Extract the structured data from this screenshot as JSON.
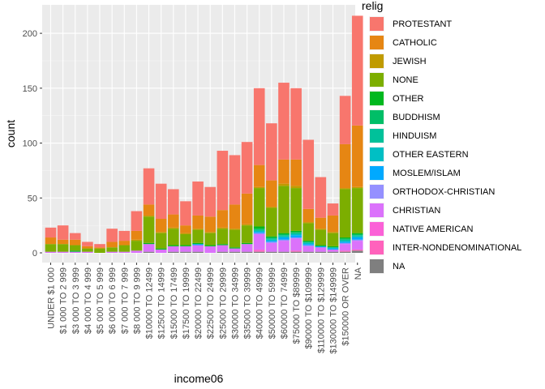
{
  "chart_data": {
    "type": "bar",
    "stacked": true,
    "xlabel": "income06",
    "ylabel": "count",
    "ylim": [
      0,
      220
    ],
    "yticks": [
      0,
      50,
      100,
      150,
      200
    ],
    "grid": true,
    "legend": {
      "title": "relig",
      "placement": "right"
    },
    "categories": [
      "UNDER $1 000",
      "$1 000 TO 2 999",
      "$3 000 TO 3 999",
      "$4 000 TO 4 999",
      "$5 000 TO 5 999",
      "$6 000 TO 6 999",
      "$7 000 TO 7 999",
      "$8 000 TO 9 999",
      "$10000 TO 12499",
      "$12500 TO 14999",
      "$15000 TO 17499",
      "$17500 TO 19999",
      "$20000 TO 22499",
      "$22500 TO 24999",
      "$25000 TO 29999",
      "$30000 TO 34999",
      "$35000 TO 39999",
      "$40000 TO 49999",
      "$50000 TO 59999",
      "$60000 TO 74999",
      "$75000 TO $89999",
      "$90000 TO $109999",
      "$110000 TO $129999",
      "$130000 TO $149999",
      "$150000 OR OVER",
      "NA"
    ],
    "series": [
      {
        "name": "NA",
        "color": "#7f7f7f",
        "values": [
          0,
          0,
          0,
          0,
          0,
          0,
          0,
          0,
          1,
          0,
          1,
          1,
          1,
          0,
          1,
          1,
          1,
          1,
          1,
          1,
          1,
          1,
          1,
          1,
          1,
          2
        ]
      },
      {
        "name": "INTER-NONDENOMINATIONAL",
        "color": "#ff62bc",
        "values": [
          0,
          0,
          0,
          0,
          0,
          0,
          0,
          0,
          0,
          0,
          0,
          0,
          0,
          0,
          0,
          0,
          0,
          1,
          0,
          0,
          1,
          0,
          0,
          0,
          1,
          1
        ]
      },
      {
        "name": "NATIVE AMERICAN",
        "color": "#fb61d7",
        "values": [
          0,
          0,
          0,
          0,
          0,
          0,
          0,
          0,
          0,
          0,
          0,
          0,
          0,
          0,
          0,
          0,
          0,
          1,
          0,
          0,
          0,
          0,
          0,
          0,
          0,
          0
        ]
      },
      {
        "name": "CHRISTIAN",
        "color": "#db72fb",
        "values": [
          1,
          1,
          1,
          1,
          0,
          1,
          1,
          2,
          7,
          3,
          5,
          5,
          6,
          6,
          6,
          3,
          7,
          14,
          8,
          10,
          11,
          5,
          4,
          2,
          6,
          8
        ]
      },
      {
        "name": "ORTHODOX-CHRISTIAN",
        "color": "#9590ff",
        "values": [
          0,
          0,
          0,
          0,
          0,
          0,
          0,
          0,
          0,
          0,
          0,
          0,
          0,
          0,
          0,
          0,
          0,
          1,
          1,
          1,
          1,
          1,
          0,
          0,
          1,
          1
        ]
      },
      {
        "name": "MOSLEM/ISLAM",
        "color": "#00a9ff",
        "values": [
          0,
          0,
          0,
          0,
          0,
          0,
          0,
          0,
          0,
          0,
          0,
          0,
          1,
          0,
          0,
          0,
          0,
          1,
          1,
          2,
          2,
          1,
          1,
          1,
          1,
          2
        ]
      },
      {
        "name": "OTHER EASTERN",
        "color": "#00bfc4",
        "values": [
          0,
          0,
          0,
          0,
          0,
          0,
          0,
          0,
          0,
          0,
          0,
          0,
          0,
          0,
          0,
          0,
          0,
          1,
          1,
          1,
          1,
          1,
          0,
          1,
          1,
          1
        ]
      },
      {
        "name": "HINDUISM",
        "color": "#00c19a",
        "values": [
          0,
          0,
          0,
          0,
          0,
          0,
          0,
          0,
          0,
          0,
          0,
          0,
          0,
          0,
          0,
          0,
          0,
          1,
          1,
          1,
          1,
          1,
          0,
          0,
          1,
          1
        ]
      },
      {
        "name": "BUDDHISM",
        "color": "#00be67",
        "values": [
          0,
          0,
          0,
          0,
          0,
          0,
          0,
          0,
          0,
          0,
          0,
          0,
          0,
          0,
          0,
          0,
          0,
          1,
          1,
          1,
          1,
          0,
          0,
          0,
          1,
          1
        ]
      },
      {
        "name": "OTHER",
        "color": "#00b81f",
        "values": [
          0,
          0,
          1,
          0,
          0,
          0,
          0,
          0,
          1,
          1,
          1,
          1,
          1,
          1,
          1,
          1,
          1,
          2,
          1,
          1,
          1,
          1,
          1,
          1,
          1,
          1
        ]
      },
      {
        "name": "NONE",
        "color": "#7cae00",
        "values": [
          7,
          7,
          5,
          3,
          4,
          4,
          6,
          9,
          24,
          14,
          15,
          10,
          12,
          11,
          14,
          16,
          16,
          35,
          26,
          43,
          39,
          16,
          14,
          12,
          44,
          41
        ]
      },
      {
        "name": "JEWISH",
        "color": "#c09b00",
        "values": [
          0,
          0,
          0,
          0,
          0,
          0,
          0,
          1,
          1,
          1,
          1,
          1,
          1,
          1,
          1,
          1,
          1,
          1,
          1,
          2,
          2,
          1,
          1,
          1,
          1,
          1
        ]
      },
      {
        "name": "CATHOLIC",
        "color": "#e68613",
        "values": [
          6,
          4,
          5,
          2,
          1,
          5,
          4,
          8,
          10,
          12,
          12,
          7,
          12,
          14,
          16,
          22,
          28,
          20,
          24,
          22,
          24,
          12,
          10,
          15,
          40,
          56
        ]
      },
      {
        "name": "PROTESTANT",
        "color": "#f8766d",
        "values": [
          9,
          13,
          6,
          4,
          3,
          12,
          9,
          18,
          33,
          32,
          23,
          22,
          31,
          27,
          54,
          45,
          47,
          70,
          52,
          70,
          65,
          63,
          37,
          11,
          44,
          100
        ]
      }
    ],
    "legend_order": [
      "PROTESTANT",
      "CATHOLIC",
      "JEWISH",
      "NONE",
      "OTHER",
      "BUDDHISM",
      "HINDUISM",
      "OTHER EASTERN",
      "MOSLEM/ISLAM",
      "ORTHODOX-CHRISTIAN",
      "CHRISTIAN",
      "NATIVE AMERICAN",
      "INTER-NONDENOMINATIONAL",
      "NA"
    ]
  }
}
